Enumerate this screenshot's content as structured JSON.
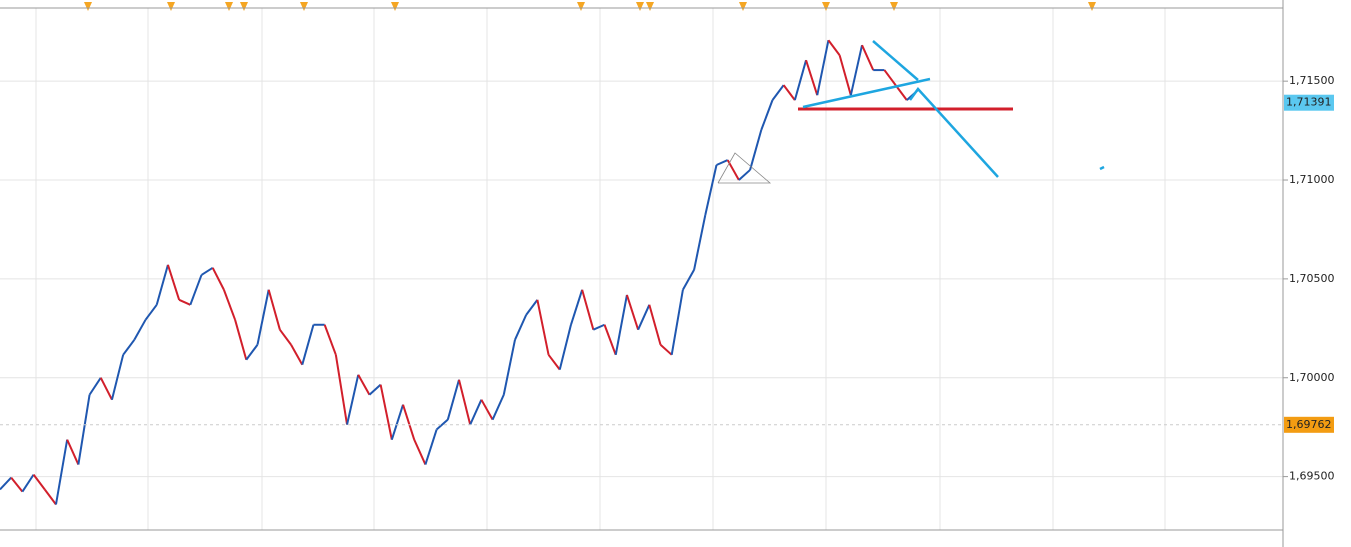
{
  "chart_data": {
    "type": "line",
    "values": [
      1.69435,
      1.69495,
      1.69424,
      1.6951,
      1.69435,
      1.69359,
      1.69687,
      1.69561,
      1.69914,
      1.7,
      1.69889,
      1.70116,
      1.70192,
      1.70293,
      1.70369,
      1.70571,
      1.70394,
      1.70369,
      1.7052,
      1.70556,
      1.70445,
      1.70293,
      1.70091,
      1.70167,
      1.70445,
      1.70243,
      1.70167,
      1.70066,
      1.70268,
      1.70268,
      1.70116,
      1.69763,
      1.70015,
      1.69914,
      1.69965,
      1.69687,
      1.69864,
      1.69687,
      1.69561,
      1.69738,
      1.69788,
      1.6999,
      1.69763,
      1.69889,
      1.69788,
      1.69914,
      1.70192,
      1.70318,
      1.70394,
      1.70116,
      1.70041,
      1.70268,
      1.70445,
      1.70243,
      1.70268,
      1.70116,
      1.70419,
      1.70243,
      1.70369,
      1.70167,
      1.70116,
      1.70445,
      1.70546,
      1.70823,
      1.71076,
      1.71101,
      1.71,
      1.71051,
      1.71253,
      1.71404,
      1.7148,
      1.71404,
      1.71606,
      1.71429,
      1.71707,
      1.71631,
      1.71429,
      1.71682,
      1.71556,
      1.71556,
      1.7148,
      1.71404,
      1.71455
    ],
    "up_color": "#1f57b0",
    "down_color": "#d21f2b",
    "ylim": [
      1.6923,
      1.7187
    ],
    "yticks": [
      {
        "value": 1.695,
        "label": "1,69500"
      },
      {
        "value": 1.7,
        "label": "1,70000"
      },
      {
        "value": 1.705,
        "label": "1,70500"
      },
      {
        "value": 1.71,
        "label": "1,71000"
      },
      {
        "value": 1.715,
        "label": "1,71500"
      }
    ],
    "grid": true,
    "price_labels": [
      {
        "value": 1.71391,
        "label": "1,71391",
        "color": "#5bc8f0"
      },
      {
        "value": 1.69762,
        "label": "1,69762",
        "color": "#f39c12"
      }
    ]
  }
}
